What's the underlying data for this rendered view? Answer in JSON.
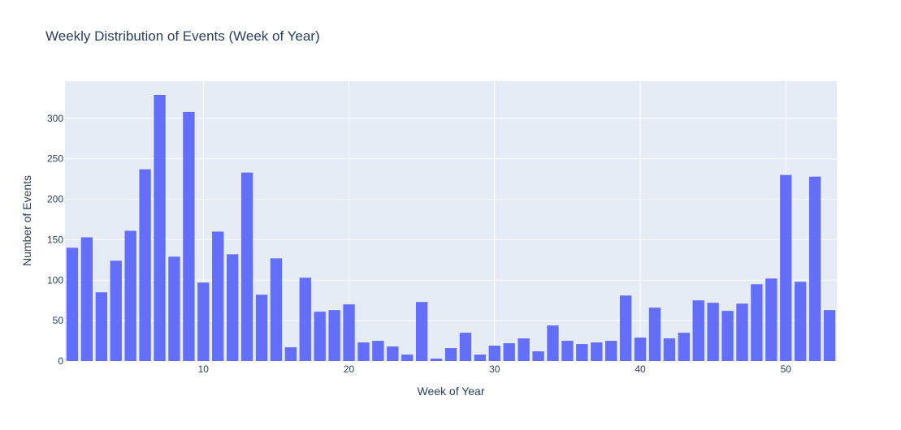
{
  "chart_data": {
    "type": "bar",
    "title": "Weekly Distribution of Events (Week of Year)",
    "xlabel": "Week of Year",
    "ylabel": "Number of Events",
    "x": [
      1,
      2,
      3,
      4,
      5,
      6,
      7,
      8,
      9,
      10,
      11,
      12,
      13,
      14,
      15,
      16,
      17,
      18,
      19,
      20,
      21,
      22,
      23,
      24,
      25,
      26,
      27,
      28,
      29,
      30,
      31,
      32,
      33,
      34,
      35,
      36,
      37,
      38,
      39,
      40,
      41,
      42,
      43,
      44,
      45,
      46,
      47,
      48,
      49,
      50,
      51,
      52,
      53
    ],
    "values": [
      140,
      153,
      85,
      124,
      161,
      237,
      329,
      129,
      308,
      97,
      160,
      132,
      233,
      82,
      127,
      17,
      103,
      61,
      63,
      70,
      23,
      25,
      18,
      8,
      73,
      3,
      16,
      35,
      8,
      19,
      22,
      28,
      12,
      44,
      25,
      21,
      23,
      25,
      81,
      29,
      66,
      28,
      35,
      75,
      72,
      62,
      71,
      95,
      102,
      230,
      98,
      228,
      63
    ],
    "xlim": [
      0.5,
      53.5
    ],
    "ylim": [
      0,
      346
    ],
    "x_ticks": [
      10,
      20,
      30,
      40,
      50
    ],
    "y_ticks": [
      0,
      50,
      100,
      150,
      200,
      250,
      300
    ],
    "grid": true,
    "bar_color": "#636efa",
    "plot_bg": "#e5ecf6",
    "grid_color": "#ffffff",
    "text_color": "#2a3f5f"
  }
}
